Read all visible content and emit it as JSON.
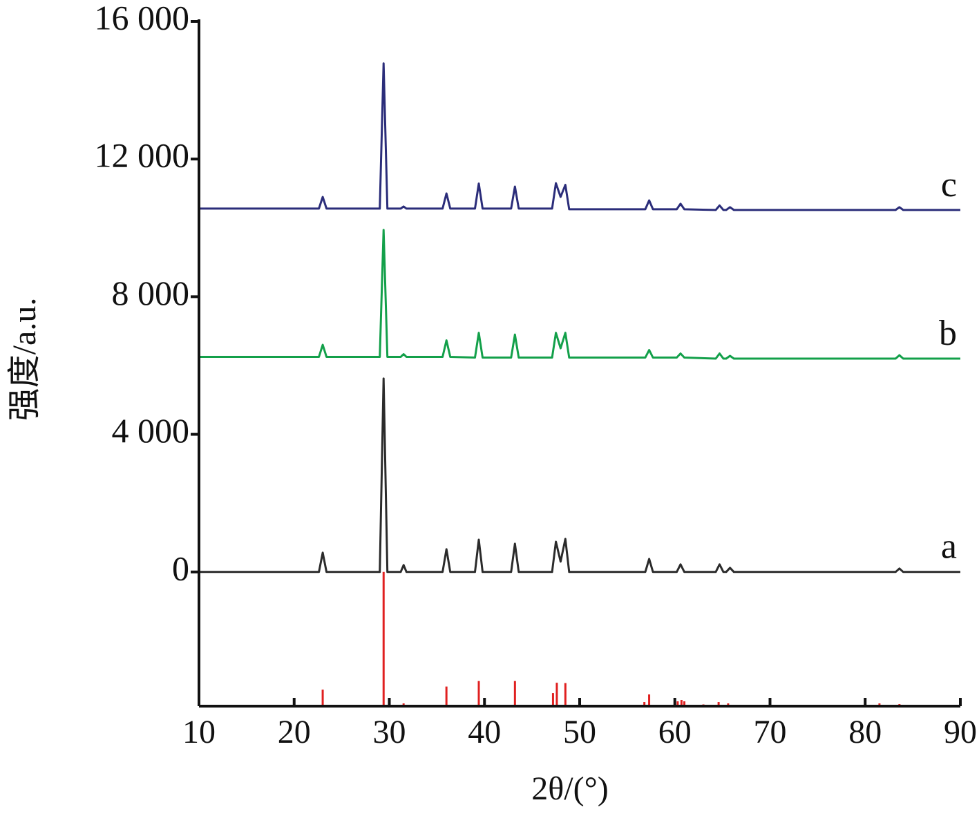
{
  "chart_data": {
    "type": "line",
    "xlabel": "2θ/(°)",
    "ylabel": "强度/a.u.",
    "xlim": [
      10,
      90
    ],
    "xticks": [
      10,
      20,
      30,
      40,
      50,
      60,
      70,
      80,
      90
    ],
    "ylim": [
      -3900,
      16000
    ],
    "yticks": [
      0,
      {
        "value": 4000,
        "label": "4 000"
      },
      {
        "value": 8000,
        "label": "8 000"
      },
      {
        "value": 12000,
        "label": "12 000"
      },
      {
        "value": 16000,
        "label": "16 000"
      }
    ],
    "x": [
      10,
      22.6,
      23.0,
      23.4,
      29.0,
      29.4,
      29.8,
      31.2,
      31.5,
      31.8,
      35.6,
      36.0,
      36.4,
      39.0,
      39.4,
      39.8,
      42.8,
      43.2,
      43.6,
      47.1,
      47.5,
      48.0,
      48.5,
      48.9,
      56.9,
      57.3,
      57.7,
      60.2,
      60.6,
      61.0,
      64.3,
      64.7,
      65.1,
      65.4,
      65.8,
      66.2,
      83.2,
      83.6,
      84.0,
      90
    ],
    "series": [
      {
        "name": "a",
        "color": "#2b2b2b",
        "values": [
          0,
          0,
          560,
          0,
          0,
          5620,
          0,
          0,
          200,
          0,
          0,
          660,
          0,
          0,
          940,
          0,
          0,
          820,
          0,
          0,
          880,
          300,
          960,
          0,
          0,
          380,
          0,
          0,
          220,
          0,
          0,
          220,
          0,
          0,
          120,
          0,
          0,
          100,
          0,
          0
        ]
      },
      {
        "name": "b",
        "color": "#13a04a",
        "values": [
          6250,
          6250,
          6600,
          6250,
          6250,
          9940,
          6250,
          6250,
          6330,
          6250,
          6250,
          6730,
          6250,
          6230,
          6950,
          6230,
          6230,
          6900,
          6230,
          6230,
          6950,
          6500,
          6950,
          6230,
          6230,
          6450,
          6230,
          6230,
          6350,
          6230,
          6200,
          6350,
          6200,
          6200,
          6280,
          6200,
          6200,
          6300,
          6200,
          6200
        ]
      },
      {
        "name": "c",
        "color": "#2b2d7a",
        "values": [
          10560,
          10560,
          10900,
          10560,
          10560,
          14780,
          10560,
          10560,
          10620,
          10560,
          10560,
          11000,
          10560,
          10560,
          11290,
          10560,
          10560,
          11200,
          10560,
          10560,
          11300,
          10900,
          11250,
          10540,
          10540,
          10800,
          10540,
          10540,
          10700,
          10540,
          10520,
          10650,
          10520,
          10520,
          10600,
          10520,
          10520,
          10600,
          10520,
          10520
        ]
      }
    ],
    "sticks": {
      "color": "#e02020",
      "x": [
        23.0,
        29.4,
        31.5,
        36.0,
        39.4,
        43.2,
        47.2,
        47.6,
        48.5,
        56.8,
        57.3,
        60.3,
        60.7,
        61.0,
        63.0,
        64.6,
        65.6,
        73.0,
        77.0,
        81.5,
        83.6
      ],
      "values": [
        -3420,
        0,
        -3820,
        -3330,
        -3170,
        -3170,
        -3520,
        -3220,
        -3230,
        -3780,
        -3560,
        -3760,
        -3720,
        -3760,
        -3850,
        -3780,
        -3820,
        -3860,
        -3860,
        -3820,
        -3840
      ]
    }
  }
}
